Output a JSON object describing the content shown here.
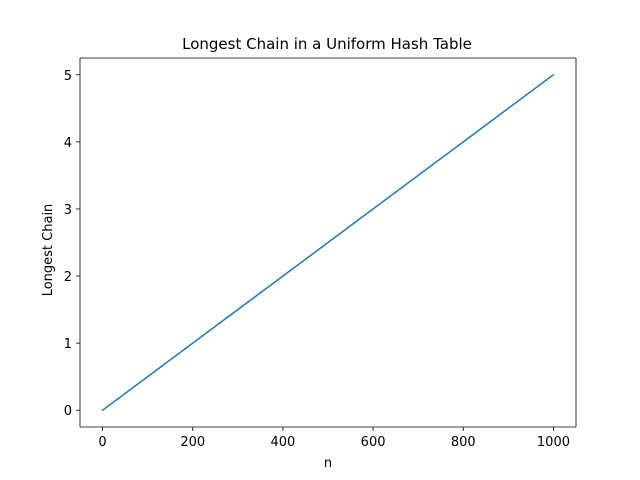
{
  "chart_data": {
    "type": "line",
    "title": "Longest Chain in a Uniform Hash Table",
    "xlabel": "n",
    "ylabel": "Longest Chain",
    "xlim": [
      -50,
      1050
    ],
    "ylim": [
      -0.25,
      5.25
    ],
    "xticks": [
      0,
      200,
      400,
      600,
      800,
      1000
    ],
    "xtick_labels": [
      "0",
      "200",
      "400",
      "600",
      "800",
      "1000"
    ],
    "yticks": [
      0,
      1,
      2,
      3,
      4,
      5
    ],
    "ytick_labels": [
      "0",
      "1",
      "2",
      "3",
      "4",
      "5"
    ],
    "grid": false,
    "legend": "none",
    "series": [
      {
        "x": [
          0,
          1000
        ],
        "y": [
          0,
          5
        ],
        "color": "#1f77b4"
      }
    ]
  }
}
